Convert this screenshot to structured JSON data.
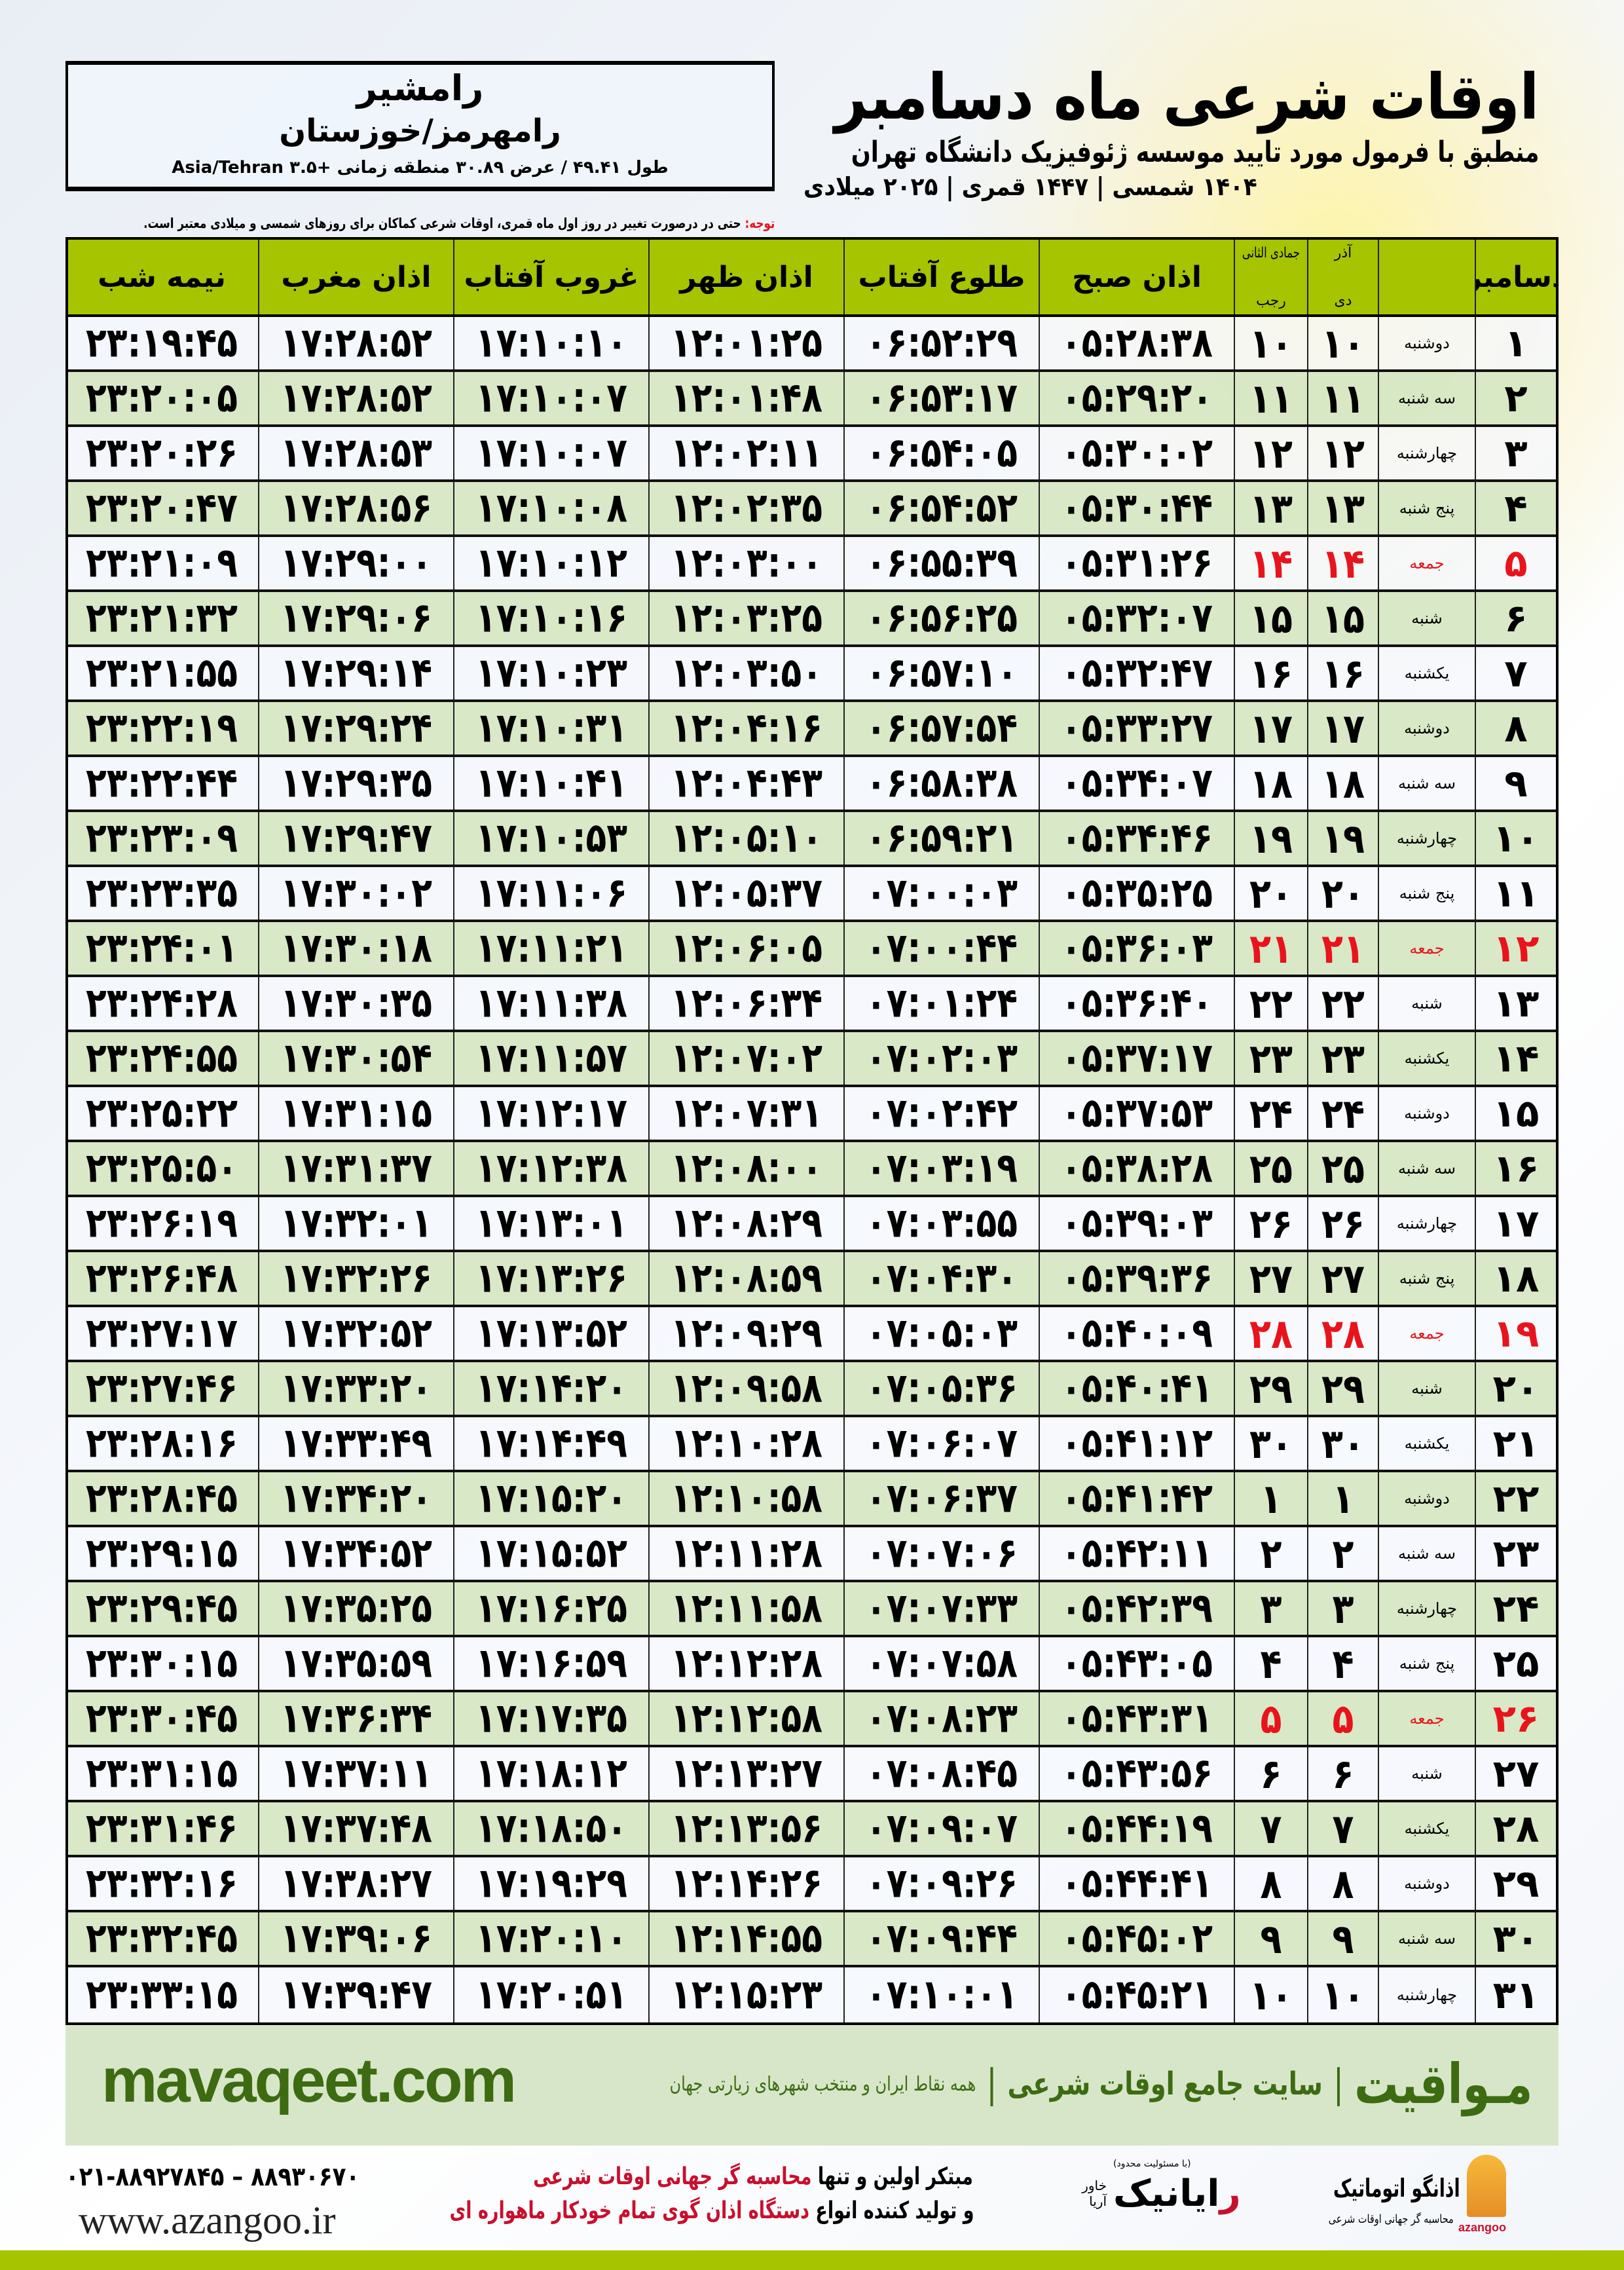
{
  "header": {
    "city": "رامشیر",
    "region": "رامهرمز/خوزستان",
    "coords": "طول ۴۹.۴۱ / عرض ۳۰.۸۹ منطقه زمانی +۳.۵ Asia/Tehran",
    "title": "اوقات شرعی ماه دسامبر",
    "subtitle": "منطبق با فرمول مورد تایید موسسه ژئوفیزیک دانشگاه تهران",
    "years": "۱۴۰۴ شمسی | ۱۴۴۷ قمری | ۲۰۲۵ میلادی",
    "note_label": "توجه:",
    "note_text": " حتی در درصورت تغییر در روز اول ماه قمری، اوقات شرعی کماکان برای روزهای شمسی و میلادی معتبر است."
  },
  "colors": {
    "header_green": "#a6c400",
    "row_alt": "#d7e6c8",
    "holiday": "#e8141c",
    "brand": "#3d6b12"
  },
  "columns": {
    "day": "دسامبر",
    "solar_top": "آذر",
    "solar_bottom": "دی",
    "lunar_top": "جمادی الثانی",
    "lunar_bottom": "رجب",
    "fajr": "اذان صبح",
    "sunrise": "طلوع آفتاب",
    "dhuhr": "اذان ظهر",
    "sunset": "غروب آفتاب",
    "maghrib": "اذان مغرب",
    "midnight": "نیمه شب"
  },
  "rows": [
    {
      "day": "۱",
      "weekday": "دوشنبه",
      "solar": "۱۰",
      "lunar": "۱۰",
      "fajr": "۰۵:۲۸:۳۸",
      "sunrise": "۰۶:۵۲:۲۹",
      "dhuhr": "۱۲:۰۱:۲۵",
      "sunset": "۱۷:۱۰:۱۰",
      "maghrib": "۱۷:۲۸:۵۲",
      "midnight": "۲۳:۱۹:۴۵"
    },
    {
      "day": "۲",
      "weekday": "سه شنبه",
      "solar": "۱۱",
      "lunar": "۱۱",
      "fajr": "۰۵:۲۹:۲۰",
      "sunrise": "۰۶:۵۳:۱۷",
      "dhuhr": "۱۲:۰۱:۴۸",
      "sunset": "۱۷:۱۰:۰۷",
      "maghrib": "۱۷:۲۸:۵۲",
      "midnight": "۲۳:۲۰:۰۵"
    },
    {
      "day": "۳",
      "weekday": "چهارشنبه",
      "solar": "۱۲",
      "lunar": "۱۲",
      "fajr": "۰۵:۳۰:۰۲",
      "sunrise": "۰۶:۵۴:۰۵",
      "dhuhr": "۱۲:۰۲:۱۱",
      "sunset": "۱۷:۱۰:۰۷",
      "maghrib": "۱۷:۲۸:۵۳",
      "midnight": "۲۳:۲۰:۲۶"
    },
    {
      "day": "۴",
      "weekday": "پنج شنبه",
      "solar": "۱۳",
      "lunar": "۱۳",
      "fajr": "۰۵:۳۰:۴۴",
      "sunrise": "۰۶:۵۴:۵۲",
      "dhuhr": "۱۲:۰۲:۳۵",
      "sunset": "۱۷:۱۰:۰۸",
      "maghrib": "۱۷:۲۸:۵۶",
      "midnight": "۲۳:۲۰:۴۷"
    },
    {
      "day": "۵",
      "weekday": "جمعه",
      "holiday": true,
      "solar": "۱۴",
      "lunar": "۱۴",
      "fajr": "۰۵:۳۱:۲۶",
      "sunrise": "۰۶:۵۵:۳۹",
      "dhuhr": "۱۲:۰۳:۰۰",
      "sunset": "۱۷:۱۰:۱۲",
      "maghrib": "۱۷:۲۹:۰۰",
      "midnight": "۲۳:۲۱:۰۹"
    },
    {
      "day": "۶",
      "weekday": "شنبه",
      "solar": "۱۵",
      "lunar": "۱۵",
      "fajr": "۰۵:۳۲:۰۷",
      "sunrise": "۰۶:۵۶:۲۵",
      "dhuhr": "۱۲:۰۳:۲۵",
      "sunset": "۱۷:۱۰:۱۶",
      "maghrib": "۱۷:۲۹:۰۶",
      "midnight": "۲۳:۲۱:۳۲"
    },
    {
      "day": "۷",
      "weekday": "یکشنبه",
      "solar": "۱۶",
      "lunar": "۱۶",
      "fajr": "۰۵:۳۲:۴۷",
      "sunrise": "۰۶:۵۷:۱۰",
      "dhuhr": "۱۲:۰۳:۵۰",
      "sunset": "۱۷:۱۰:۲۳",
      "maghrib": "۱۷:۲۹:۱۴",
      "midnight": "۲۳:۲۱:۵۵"
    },
    {
      "day": "۸",
      "weekday": "دوشنبه",
      "solar": "۱۷",
      "lunar": "۱۷",
      "fajr": "۰۵:۳۳:۲۷",
      "sunrise": "۰۶:۵۷:۵۴",
      "dhuhr": "۱۲:۰۴:۱۶",
      "sunset": "۱۷:۱۰:۳۱",
      "maghrib": "۱۷:۲۹:۲۴",
      "midnight": "۲۳:۲۲:۱۹"
    },
    {
      "day": "۹",
      "weekday": "سه شنبه",
      "solar": "۱۸",
      "lunar": "۱۸",
      "fajr": "۰۵:۳۴:۰۷",
      "sunrise": "۰۶:۵۸:۳۸",
      "dhuhr": "۱۲:۰۴:۴۳",
      "sunset": "۱۷:۱۰:۴۱",
      "maghrib": "۱۷:۲۹:۳۵",
      "midnight": "۲۳:۲۲:۴۴"
    },
    {
      "day": "۱۰",
      "weekday": "چهارشنبه",
      "solar": "۱۹",
      "lunar": "۱۹",
      "fajr": "۰۵:۳۴:۴۶",
      "sunrise": "۰۶:۵۹:۲۱",
      "dhuhr": "۱۲:۰۵:۱۰",
      "sunset": "۱۷:۱۰:۵۳",
      "maghrib": "۱۷:۲۹:۴۷",
      "midnight": "۲۳:۲۳:۰۹"
    },
    {
      "day": "۱۱",
      "weekday": "پنج شنبه",
      "solar": "۲۰",
      "lunar": "۲۰",
      "fajr": "۰۵:۳۵:۲۵",
      "sunrise": "۰۷:۰۰:۰۳",
      "dhuhr": "۱۲:۰۵:۳۷",
      "sunset": "۱۷:۱۱:۰۶",
      "maghrib": "۱۷:۳۰:۰۲",
      "midnight": "۲۳:۲۳:۳۵"
    },
    {
      "day": "۱۲",
      "weekday": "جمعه",
      "holiday": true,
      "solar": "۲۱",
      "lunar": "۲۱",
      "fajr": "۰۵:۳۶:۰۳",
      "sunrise": "۰۷:۰۰:۴۴",
      "dhuhr": "۱۲:۰۶:۰۵",
      "sunset": "۱۷:۱۱:۲۱",
      "maghrib": "۱۷:۳۰:۱۸",
      "midnight": "۲۳:۲۴:۰۱"
    },
    {
      "day": "۱۳",
      "weekday": "شنبه",
      "solar": "۲۲",
      "lunar": "۲۲",
      "fajr": "۰۵:۳۶:۴۰",
      "sunrise": "۰۷:۰۱:۲۴",
      "dhuhr": "۱۲:۰۶:۳۴",
      "sunset": "۱۷:۱۱:۳۸",
      "maghrib": "۱۷:۳۰:۳۵",
      "midnight": "۲۳:۲۴:۲۸"
    },
    {
      "day": "۱۴",
      "weekday": "یکشنبه",
      "solar": "۲۳",
      "lunar": "۲۳",
      "fajr": "۰۵:۳۷:۱۷",
      "sunrise": "۰۷:۰۲:۰۳",
      "dhuhr": "۱۲:۰۷:۰۲",
      "sunset": "۱۷:۱۱:۵۷",
      "maghrib": "۱۷:۳۰:۵۴",
      "midnight": "۲۳:۲۴:۵۵"
    },
    {
      "day": "۱۵",
      "weekday": "دوشنبه",
      "solar": "۲۴",
      "lunar": "۲۴",
      "fajr": "۰۵:۳۷:۵۳",
      "sunrise": "۰۷:۰۲:۴۲",
      "dhuhr": "۱۲:۰۷:۳۱",
      "sunset": "۱۷:۱۲:۱۷",
      "maghrib": "۱۷:۳۱:۱۵",
      "midnight": "۲۳:۲۵:۲۲"
    },
    {
      "day": "۱۶",
      "weekday": "سه شنبه",
      "solar": "۲۵",
      "lunar": "۲۵",
      "fajr": "۰۵:۳۸:۲۸",
      "sunrise": "۰۷:۰۳:۱۹",
      "dhuhr": "۱۲:۰۸:۰۰",
      "sunset": "۱۷:۱۲:۳۸",
      "maghrib": "۱۷:۳۱:۳۷",
      "midnight": "۲۳:۲۵:۵۰"
    },
    {
      "day": "۱۷",
      "weekday": "چهارشنبه",
      "solar": "۲۶",
      "lunar": "۲۶",
      "fajr": "۰۵:۳۹:۰۳",
      "sunrise": "۰۷:۰۳:۵۵",
      "dhuhr": "۱۲:۰۸:۲۹",
      "sunset": "۱۷:۱۳:۰۱",
      "maghrib": "۱۷:۳۲:۰۱",
      "midnight": "۲۳:۲۶:۱۹"
    },
    {
      "day": "۱۸",
      "weekday": "پنج شنبه",
      "solar": "۲۷",
      "lunar": "۲۷",
      "fajr": "۰۵:۳۹:۳۶",
      "sunrise": "۰۷:۰۴:۳۰",
      "dhuhr": "۱۲:۰۸:۵۹",
      "sunset": "۱۷:۱۳:۲۶",
      "maghrib": "۱۷:۳۲:۲۶",
      "midnight": "۲۳:۲۶:۴۸"
    },
    {
      "day": "۱۹",
      "weekday": "جمعه",
      "holiday": true,
      "solar": "۲۸",
      "lunar": "۲۸",
      "fajr": "۰۵:۴۰:۰۹",
      "sunrise": "۰۷:۰۵:۰۳",
      "dhuhr": "۱۲:۰۹:۲۹",
      "sunset": "۱۷:۱۳:۵۲",
      "maghrib": "۱۷:۳۲:۵۲",
      "midnight": "۲۳:۲۷:۱۷"
    },
    {
      "day": "۲۰",
      "weekday": "شنبه",
      "solar": "۲۹",
      "lunar": "۲۹",
      "fajr": "۰۵:۴۰:۴۱",
      "sunrise": "۰۷:۰۵:۳۶",
      "dhuhr": "۱۲:۰۹:۵۸",
      "sunset": "۱۷:۱۴:۲۰",
      "maghrib": "۱۷:۳۳:۲۰",
      "midnight": "۲۳:۲۷:۴۶"
    },
    {
      "day": "۲۱",
      "weekday": "یکشنبه",
      "solar": "۳۰",
      "lunar": "۳۰",
      "fajr": "۰۵:۴۱:۱۲",
      "sunrise": "۰۷:۰۶:۰۷",
      "dhuhr": "۱۲:۱۰:۲۸",
      "sunset": "۱۷:۱۴:۴۹",
      "maghrib": "۱۷:۳۳:۴۹",
      "midnight": "۲۳:۲۸:۱۶"
    },
    {
      "day": "۲۲",
      "weekday": "دوشنبه",
      "solar": "۱",
      "lunar": "۱",
      "fajr": "۰۵:۴۱:۴۲",
      "sunrise": "۰۷:۰۶:۳۷",
      "dhuhr": "۱۲:۱۰:۵۸",
      "sunset": "۱۷:۱۵:۲۰",
      "maghrib": "۱۷:۳۴:۲۰",
      "midnight": "۲۳:۲۸:۴۵"
    },
    {
      "day": "۲۳",
      "weekday": "سه شنبه",
      "solar": "۲",
      "lunar": "۲",
      "fajr": "۰۵:۴۲:۱۱",
      "sunrise": "۰۷:۰۷:۰۶",
      "dhuhr": "۱۲:۱۱:۲۸",
      "sunset": "۱۷:۱۵:۵۲",
      "maghrib": "۱۷:۳۴:۵۲",
      "midnight": "۲۳:۲۹:۱۵"
    },
    {
      "day": "۲۴",
      "weekday": "چهارشنبه",
      "solar": "۳",
      "lunar": "۳",
      "fajr": "۰۵:۴۲:۳۹",
      "sunrise": "۰۷:۰۷:۳۳",
      "dhuhr": "۱۲:۱۱:۵۸",
      "sunset": "۱۷:۱۶:۲۵",
      "maghrib": "۱۷:۳۵:۲۵",
      "midnight": "۲۳:۲۹:۴۵"
    },
    {
      "day": "۲۵",
      "weekday": "پنج شنبه",
      "solar": "۴",
      "lunar": "۴",
      "fajr": "۰۵:۴۳:۰۵",
      "sunrise": "۰۷:۰۷:۵۸",
      "dhuhr": "۱۲:۱۲:۲۸",
      "sunset": "۱۷:۱۶:۵۹",
      "maghrib": "۱۷:۳۵:۵۹",
      "midnight": "۲۳:۳۰:۱۵"
    },
    {
      "day": "۲۶",
      "weekday": "جمعه",
      "holiday": true,
      "solar": "۵",
      "lunar": "۵",
      "fajr": "۰۵:۴۳:۳۱",
      "sunrise": "۰۷:۰۸:۲۳",
      "dhuhr": "۱۲:۱۲:۵۸",
      "sunset": "۱۷:۱۷:۳۵",
      "maghrib": "۱۷:۳۶:۳۴",
      "midnight": "۲۳:۳۰:۴۵"
    },
    {
      "day": "۲۷",
      "weekday": "شنبه",
      "solar": "۶",
      "lunar": "۶",
      "fajr": "۰۵:۴۳:۵۶",
      "sunrise": "۰۷:۰۸:۴۵",
      "dhuhr": "۱۲:۱۳:۲۷",
      "sunset": "۱۷:۱۸:۱۲",
      "maghrib": "۱۷:۳۷:۱۱",
      "midnight": "۲۳:۳۱:۱۵"
    },
    {
      "day": "۲۸",
      "weekday": "یکشنبه",
      "solar": "۷",
      "lunar": "۷",
      "fajr": "۰۵:۴۴:۱۹",
      "sunrise": "۰۷:۰۹:۰۷",
      "dhuhr": "۱۲:۱۳:۵۶",
      "sunset": "۱۷:۱۸:۵۰",
      "maghrib": "۱۷:۳۷:۴۸",
      "midnight": "۲۳:۳۱:۴۶"
    },
    {
      "day": "۲۹",
      "weekday": "دوشنبه",
      "solar": "۸",
      "lunar": "۸",
      "fajr": "۰۵:۴۴:۴۱",
      "sunrise": "۰۷:۰۹:۲۶",
      "dhuhr": "۱۲:۱۴:۲۶",
      "sunset": "۱۷:۱۹:۲۹",
      "maghrib": "۱۷:۳۸:۲۷",
      "midnight": "۲۳:۳۲:۱۶"
    },
    {
      "day": "۳۰",
      "weekday": "سه شنبه",
      "solar": "۹",
      "lunar": "۹",
      "fajr": "۰۵:۴۵:۰۲",
      "sunrise": "۰۷:۰۹:۴۴",
      "dhuhr": "۱۲:۱۴:۵۵",
      "sunset": "۱۷:۲۰:۱۰",
      "maghrib": "۱۷:۳۹:۰۶",
      "midnight": "۲۳:۳۲:۴۵"
    },
    {
      "day": "۳۱",
      "weekday": "چهارشنبه",
      "solar": "۱۰",
      "lunar": "۱۰",
      "fajr": "۰۵:۴۵:۲۱",
      "sunrise": "۰۷:۱۰:۰۱",
      "dhuhr": "۱۲:۱۵:۲۳",
      "sunset": "۱۷:۲۰:۵۱",
      "maghrib": "۱۷:۳۹:۴۷",
      "midnight": "۲۳:۳۳:۱۵"
    }
  ],
  "footer": {
    "brand": "مـواقیت",
    "separator": "|",
    "brand_desc": "سایت جامع اوقات شرعی",
    "brand_sub": "همه نقاط ایران و منتخب شهرهای زیارتی جهان",
    "site": "mavaqeet.com",
    "phone": "۰۲۱-۸۸۹۲۷۸۴۵ – ۸۸۹۳۰۶۷۰",
    "web": "www.azangoo.ir",
    "promo_line1_a": "مبتکر اولین و تنها ",
    "promo_line1_b": "محاسبه گر جهانی اوقات شرعی",
    "promo_line2_a": "و تولید کننده انواع ",
    "promo_line2_b": "دستگاه اذان گوی تمام خودکار ماهواره ای",
    "rayanik_small": "(با مسئولیت محدود)",
    "rayanik_r": "ر",
    "rayanik_rest": "ایانیک",
    "rayanik_side": "خاور آریا",
    "azangoo_name": "اذانگو اتوماتیک",
    "azangoo_sub": "محاسبه گر جهانی اوقات شرعی",
    "azangoo_latin": "azangoo"
  }
}
